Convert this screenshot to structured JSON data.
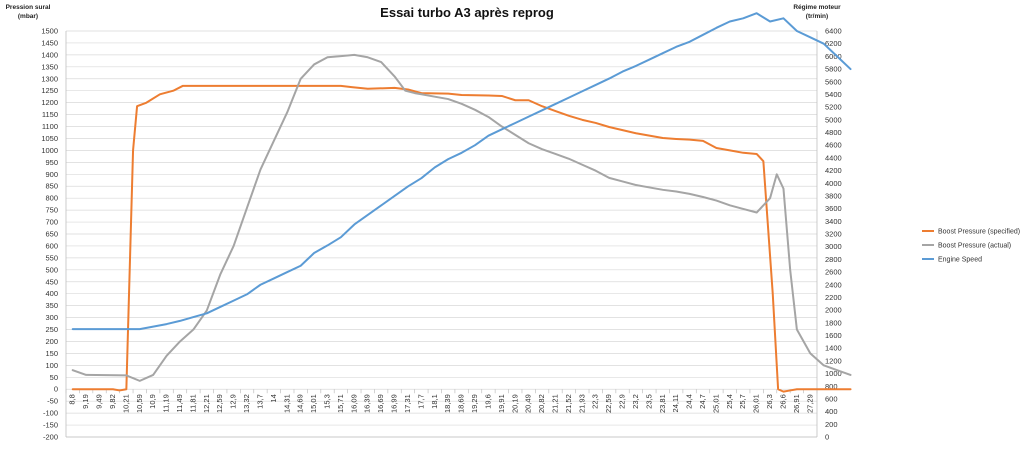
{
  "chart_data": {
    "type": "line",
    "title": "Essai turbo A3 après reprog",
    "ylabel_left": [
      "Pression sural",
      "(mbar)"
    ],
    "ylabel_right": [
      "Régime moteur",
      "(tr/min)"
    ],
    "ylim_left": [
      -200,
      1500
    ],
    "ylim_right": [
      0,
      6400
    ],
    "yticks_left": [
      -200,
      -150,
      -100,
      -50,
      0,
      50,
      100,
      150,
      200,
      250,
      300,
      350,
      400,
      450,
      500,
      550,
      600,
      650,
      700,
      750,
      800,
      850,
      900,
      950,
      1000,
      1050,
      1100,
      1150,
      1200,
      1250,
      1300,
      1350,
      1400,
      1450,
      1500
    ],
    "yticks_right": [
      0,
      200,
      400,
      600,
      800,
      1000,
      1200,
      1400,
      1600,
      1800,
      2000,
      2200,
      2400,
      2600,
      2800,
      3000,
      3200,
      3400,
      3600,
      3800,
      4000,
      4200,
      4400,
      4600,
      4800,
      5000,
      5200,
      5400,
      5600,
      5800,
      6000,
      6200,
      6400
    ],
    "x": [
      "8,8",
      "9,19",
      "9,49",
      "9,82",
      "10,21",
      "10,59",
      "10,9",
      "11,19",
      "11,49",
      "11,81",
      "12,21",
      "12,59",
      "12,9",
      "13,32",
      "13,7",
      "14",
      "14,31",
      "14,69",
      "15,01",
      "15,3",
      "15,71",
      "16,09",
      "16,39",
      "16,69",
      "16,99",
      "17,31",
      "17,7",
      "18,1",
      "18,39",
      "18,69",
      "19,29",
      "19,6",
      "19,91",
      "20,19",
      "20,49",
      "20,82",
      "21,21",
      "21,52",
      "21,93",
      "22,3",
      "22,59",
      "22,9",
      "23,2",
      "23,5",
      "23,81",
      "24,11",
      "24,4",
      "24,7",
      "25,01",
      "25,4",
      "25,7",
      "26,01",
      "26,3",
      "26,6",
      "26,91",
      "27,29"
    ],
    "grid": "horizontal",
    "legend_position": "right",
    "series": [
      {
        "name": "Boost Pressure (specified)",
        "axis": "left",
        "color": "#ED7D31",
        "points": [
          [
            0,
            0
          ],
          [
            2,
            0
          ],
          [
            3,
            0
          ],
          [
            3.5,
            -5
          ],
          [
            4,
            0
          ],
          [
            4.5,
            1000
          ],
          [
            4.8,
            1185
          ],
          [
            5.5,
            1200
          ],
          [
            6.5,
            1235
          ],
          [
            7.5,
            1250
          ],
          [
            8.2,
            1270
          ],
          [
            9,
            1270
          ],
          [
            12,
            1270
          ],
          [
            15,
            1270
          ],
          [
            20,
            1270
          ],
          [
            20.8,
            1265
          ],
          [
            22,
            1258
          ],
          [
            24,
            1262
          ],
          [
            25,
            1255
          ],
          [
            26,
            1240
          ],
          [
            28,
            1238
          ],
          [
            29,
            1232
          ],
          [
            31,
            1230
          ],
          [
            32,
            1228
          ],
          [
            33,
            1210
          ],
          [
            34,
            1210
          ],
          [
            35,
            1185
          ],
          [
            36,
            1165
          ],
          [
            37,
            1145
          ],
          [
            38,
            1128
          ],
          [
            39,
            1115
          ],
          [
            40,
            1098
          ],
          [
            41,
            1085
          ],
          [
            42,
            1072
          ],
          [
            43,
            1062
          ],
          [
            44,
            1052
          ],
          [
            45,
            1048
          ],
          [
            46,
            1045
          ],
          [
            47,
            1040
          ],
          [
            48,
            1010
          ],
          [
            49,
            1000
          ],
          [
            50,
            990
          ],
          [
            51,
            985
          ],
          [
            51.5,
            955
          ],
          [
            52.2,
            400
          ],
          [
            52.6,
            0
          ],
          [
            53,
            -10
          ],
          [
            53.5,
            -5
          ],
          [
            54,
            0
          ],
          [
            58,
            0
          ]
        ]
      },
      {
        "name": "Boost Pressure (actual)",
        "axis": "left",
        "color": "#A5A5A5",
        "points": [
          [
            0,
            80
          ],
          [
            1,
            60
          ],
          [
            4,
            58
          ],
          [
            5,
            35
          ],
          [
            6,
            60
          ],
          [
            7,
            140
          ],
          [
            8,
            200
          ],
          [
            9,
            250
          ],
          [
            10,
            330
          ],
          [
            11,
            480
          ],
          [
            12,
            600
          ],
          [
            13,
            760
          ],
          [
            14,
            920
          ],
          [
            15,
            1040
          ],
          [
            16,
            1160
          ],
          [
            17,
            1300
          ],
          [
            18,
            1360
          ],
          [
            19,
            1390
          ],
          [
            20,
            1395
          ],
          [
            21,
            1400
          ],
          [
            22,
            1390
          ],
          [
            23,
            1370
          ],
          [
            24,
            1310
          ],
          [
            24.8,
            1250
          ],
          [
            25.5,
            1240
          ],
          [
            26,
            1235
          ],
          [
            27,
            1225
          ],
          [
            28,
            1215
          ],
          [
            29,
            1195
          ],
          [
            30,
            1170
          ],
          [
            31,
            1140
          ],
          [
            32,
            1100
          ],
          [
            33,
            1065
          ],
          [
            34,
            1030
          ],
          [
            35,
            1005
          ],
          [
            36,
            985
          ],
          [
            37,
            965
          ],
          [
            38,
            940
          ],
          [
            39,
            915
          ],
          [
            40,
            885
          ],
          [
            41,
            870
          ],
          [
            42,
            855
          ],
          [
            43,
            845
          ],
          [
            44,
            835
          ],
          [
            45,
            828
          ],
          [
            46,
            818
          ],
          [
            47,
            805
          ],
          [
            48,
            790
          ],
          [
            49,
            770
          ],
          [
            50,
            755
          ],
          [
            51,
            740
          ],
          [
            52,
            800
          ],
          [
            52.5,
            900
          ],
          [
            53,
            840
          ],
          [
            53.5,
            500
          ],
          [
            54,
            250
          ],
          [
            55,
            150
          ],
          [
            56,
            100
          ],
          [
            57,
            80
          ],
          [
            58,
            60
          ]
        ]
      },
      {
        "name": "Engine Speed",
        "axis": "right",
        "color": "#5B9BD5",
        "points": [
          [
            0,
            1700
          ],
          [
            5,
            1700
          ],
          [
            6,
            1740
          ],
          [
            7,
            1780
          ],
          [
            8,
            1830
          ],
          [
            9,
            1890
          ],
          [
            10,
            1950
          ],
          [
            11,
            2050
          ],
          [
            12,
            2150
          ],
          [
            13,
            2250
          ],
          [
            14,
            2400
          ],
          [
            15,
            2500
          ],
          [
            16,
            2600
          ],
          [
            17,
            2700
          ],
          [
            18,
            2900
          ],
          [
            19,
            3020
          ],
          [
            20,
            3150
          ],
          [
            21,
            3350
          ],
          [
            22,
            3500
          ],
          [
            23,
            3650
          ],
          [
            24,
            3800
          ],
          [
            25,
            3950
          ],
          [
            26,
            4080
          ],
          [
            27,
            4250
          ],
          [
            28,
            4380
          ],
          [
            29,
            4480
          ],
          [
            30,
            4600
          ],
          [
            31,
            4750
          ],
          [
            32,
            4850
          ],
          [
            33,
            4950
          ],
          [
            34,
            5050
          ],
          [
            35,
            5150
          ],
          [
            36,
            5250
          ],
          [
            37,
            5350
          ],
          [
            38,
            5450
          ],
          [
            39,
            5550
          ],
          [
            40,
            5650
          ],
          [
            41,
            5760
          ],
          [
            42,
            5850
          ],
          [
            43,
            5950
          ],
          [
            44,
            6050
          ],
          [
            45,
            6150
          ],
          [
            46,
            6230
          ],
          [
            47,
            6340
          ],
          [
            48,
            6450
          ],
          [
            49,
            6550
          ],
          [
            50,
            6600
          ],
          [
            51,
            6680
          ],
          [
            52,
            6550
          ],
          [
            53,
            6600
          ],
          [
            54,
            6400
          ],
          [
            55,
            6300
          ],
          [
            56,
            6200
          ],
          [
            57,
            6000
          ],
          [
            58,
            5800
          ]
        ]
      }
    ]
  }
}
